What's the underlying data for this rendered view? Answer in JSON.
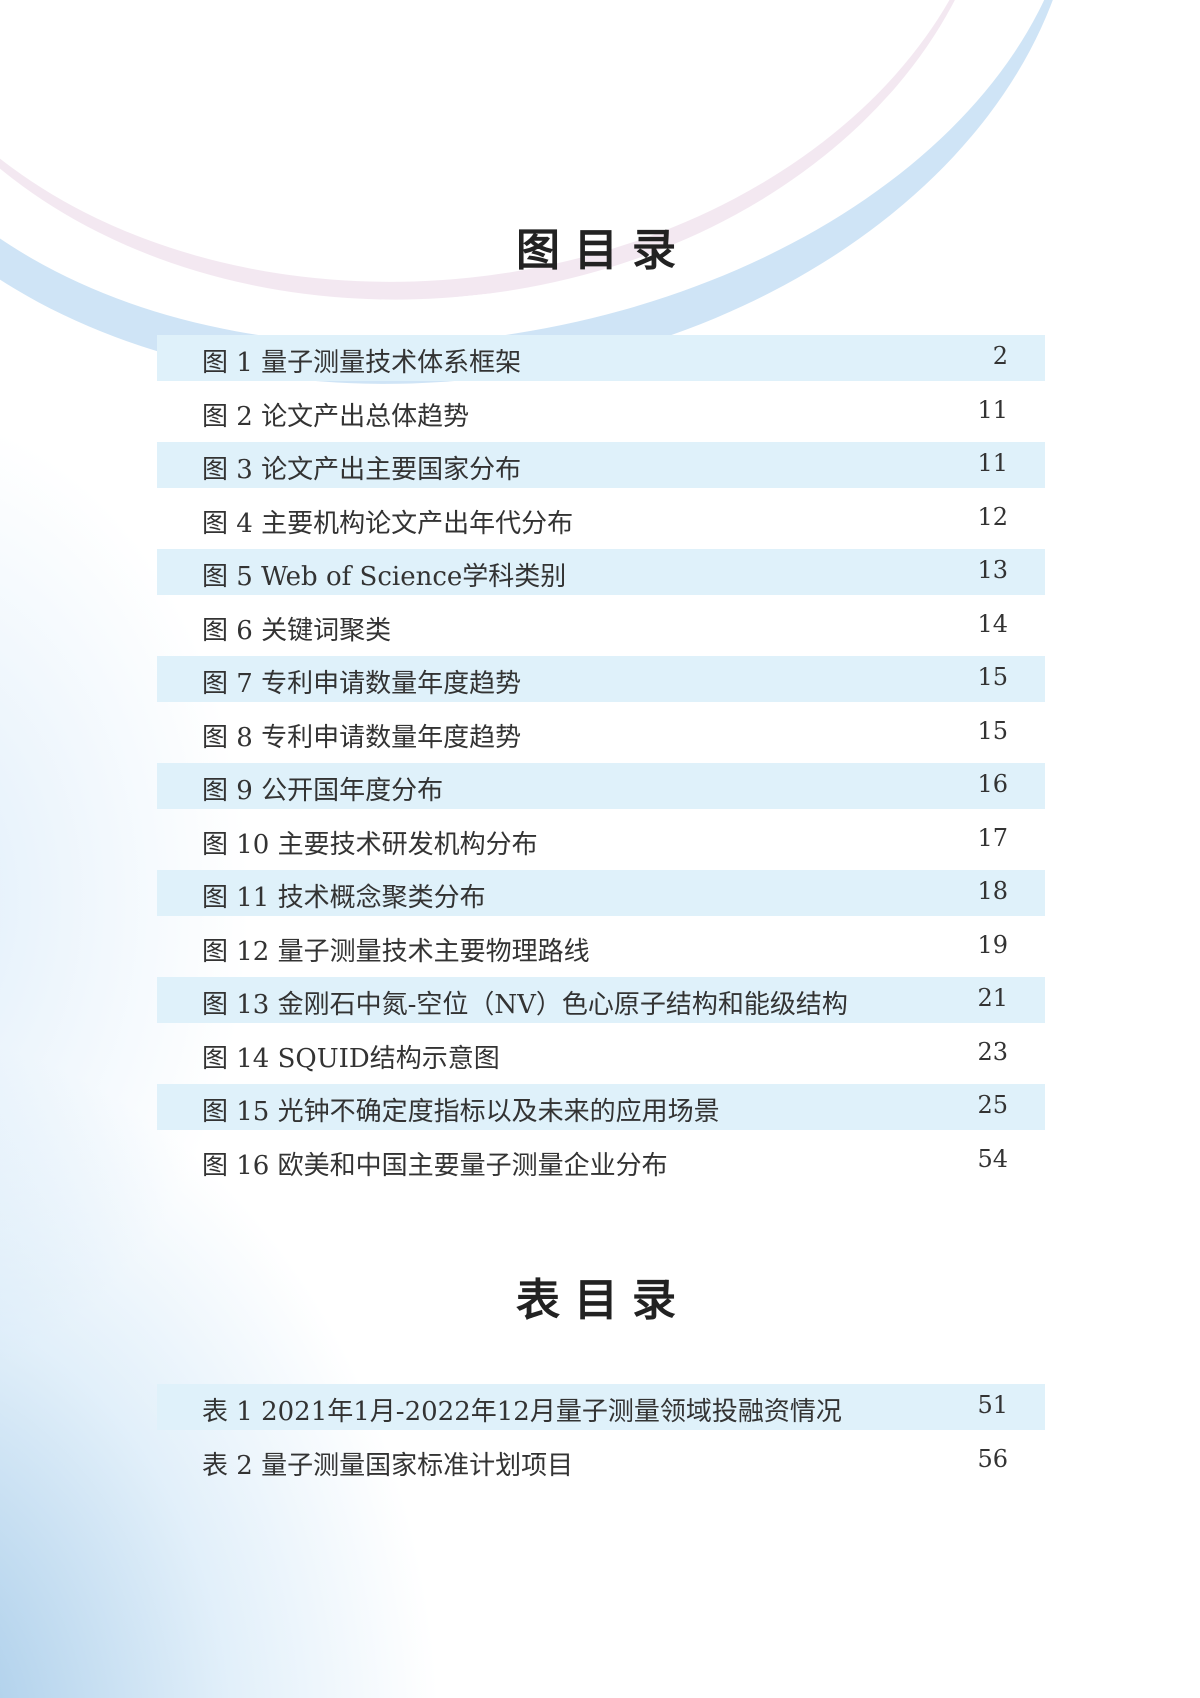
{
  "figures_title": "图目录",
  "figures": [
    {
      "label": "图 1 量子测量技术体系框架",
      "page": "2"
    },
    {
      "label": "图 2 论文产出总体趋势",
      "page": "11"
    },
    {
      "label": "图 3 论文产出主要国家分布",
      "page": "11"
    },
    {
      "label": "图 4 主要机构论文产出年代分布",
      "page": "12"
    },
    {
      "label": "图 5 Web of Science学科类别",
      "page": "13"
    },
    {
      "label": "图 6 关键词聚类",
      "page": "14"
    },
    {
      "label": "图 7 专利申请数量年度趋势",
      "page": "15"
    },
    {
      "label": "图 8 专利申请数量年度趋势",
      "page": "15"
    },
    {
      "label": "图 9 公开国年度分布",
      "page": "16"
    },
    {
      "label": "图 10 主要技术研发机构分布",
      "page": "17"
    },
    {
      "label": "图 11 技术概念聚类分布",
      "page": "18"
    },
    {
      "label": "图 12 量子测量技术主要物理路线",
      "page": "19"
    },
    {
      "label": "图 13 金刚石中氮-空位（NV）色心原子结构和能级结构",
      "page": "21"
    },
    {
      "label": "图 14 SQUID结构示意图",
      "page": "23"
    },
    {
      "label": "图 15 光钟不确定度指标以及未来的应用场景",
      "page": "25"
    },
    {
      "label": "图 16 欧美和中国主要量子测量企业分布",
      "page": "54"
    }
  ],
  "tables_title": "表目录",
  "tables": [
    {
      "label": "表 1 2021年1月-2022年12月量子测量领域投融资情况",
      "page": "51"
    },
    {
      "label": "表 2 量子测量国家标准计划项目",
      "page": "56"
    }
  ],
  "colors": {
    "band": "#dff1fa",
    "accent": "#8cc3ea"
  }
}
